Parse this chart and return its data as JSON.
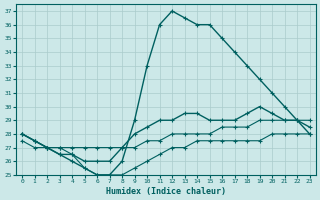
{
  "xlabel": "Humidex (Indice chaleur)",
  "background_color": "#cce8e8",
  "grid_color": "#aacccc",
  "line_color": "#006060",
  "xlim": [
    -0.5,
    23.5
  ],
  "ylim": [
    25,
    37.5
  ],
  "yticks": [
    25,
    26,
    27,
    28,
    29,
    30,
    31,
    32,
    33,
    34,
    35,
    36,
    37
  ],
  "xticks": [
    0,
    1,
    2,
    3,
    4,
    5,
    6,
    7,
    8,
    9,
    10,
    11,
    12,
    13,
    14,
    15,
    16,
    17,
    18,
    19,
    20,
    21,
    22,
    23
  ],
  "curves": [
    {
      "x": [
        0,
        1,
        2,
        3,
        4,
        5,
        6,
        7,
        8,
        9,
        10,
        11,
        12,
        13,
        14,
        15,
        16,
        17,
        18,
        19,
        20,
        21,
        22,
        23
      ],
      "y": [
        28,
        27.5,
        27,
        26.5,
        26,
        25.5,
        25,
        25,
        26,
        29,
        33,
        36,
        37,
        36.5,
        36,
        36,
        35,
        34,
        33,
        32,
        31,
        30,
        29,
        28
      ],
      "marker": "+",
      "linestyle": "-",
      "linewidth": 1.0
    },
    {
      "x": [
        0,
        1,
        2,
        3,
        4,
        5,
        6,
        7,
        8,
        9,
        10,
        11,
        12,
        13,
        14,
        15,
        16,
        17,
        18,
        19,
        20,
        21,
        22,
        23
      ],
      "y": [
        28,
        27.5,
        27,
        26.5,
        26.5,
        26,
        26,
        26,
        27,
        28,
        28.5,
        29,
        29,
        29.5,
        29.5,
        29,
        29,
        29,
        29.5,
        30,
        29.5,
        29,
        29,
        28.5
      ],
      "marker": "+",
      "linestyle": "-",
      "linewidth": 1.0
    },
    {
      "x": [
        0,
        1,
        2,
        3,
        4,
        5,
        6,
        7,
        8,
        9,
        10,
        11,
        12,
        13,
        14,
        15,
        16,
        17,
        18,
        19,
        20,
        21,
        22,
        23
      ],
      "y": [
        28,
        27.5,
        27,
        27,
        27,
        27,
        27,
        27,
        27,
        27,
        27.5,
        27.5,
        28,
        28,
        28,
        28,
        28.5,
        28.5,
        28.5,
        29,
        29,
        29,
        29,
        29
      ],
      "marker": "+",
      "linestyle": "-",
      "linewidth": 0.8
    },
    {
      "x": [
        0,
        1,
        2,
        3,
        4,
        5,
        6,
        7,
        8,
        9,
        10,
        11,
        12,
        13,
        14,
        15,
        16,
        17,
        18,
        19,
        20,
        21,
        22,
        23
      ],
      "y": [
        27.5,
        27,
        27,
        27,
        26.5,
        25.5,
        25,
        25,
        25,
        25.5,
        26,
        26.5,
        27,
        27,
        27.5,
        27.5,
        27.5,
        27.5,
        27.5,
        27.5,
        28,
        28,
        28,
        28
      ],
      "marker": "+",
      "linestyle": "-",
      "linewidth": 0.8
    }
  ]
}
